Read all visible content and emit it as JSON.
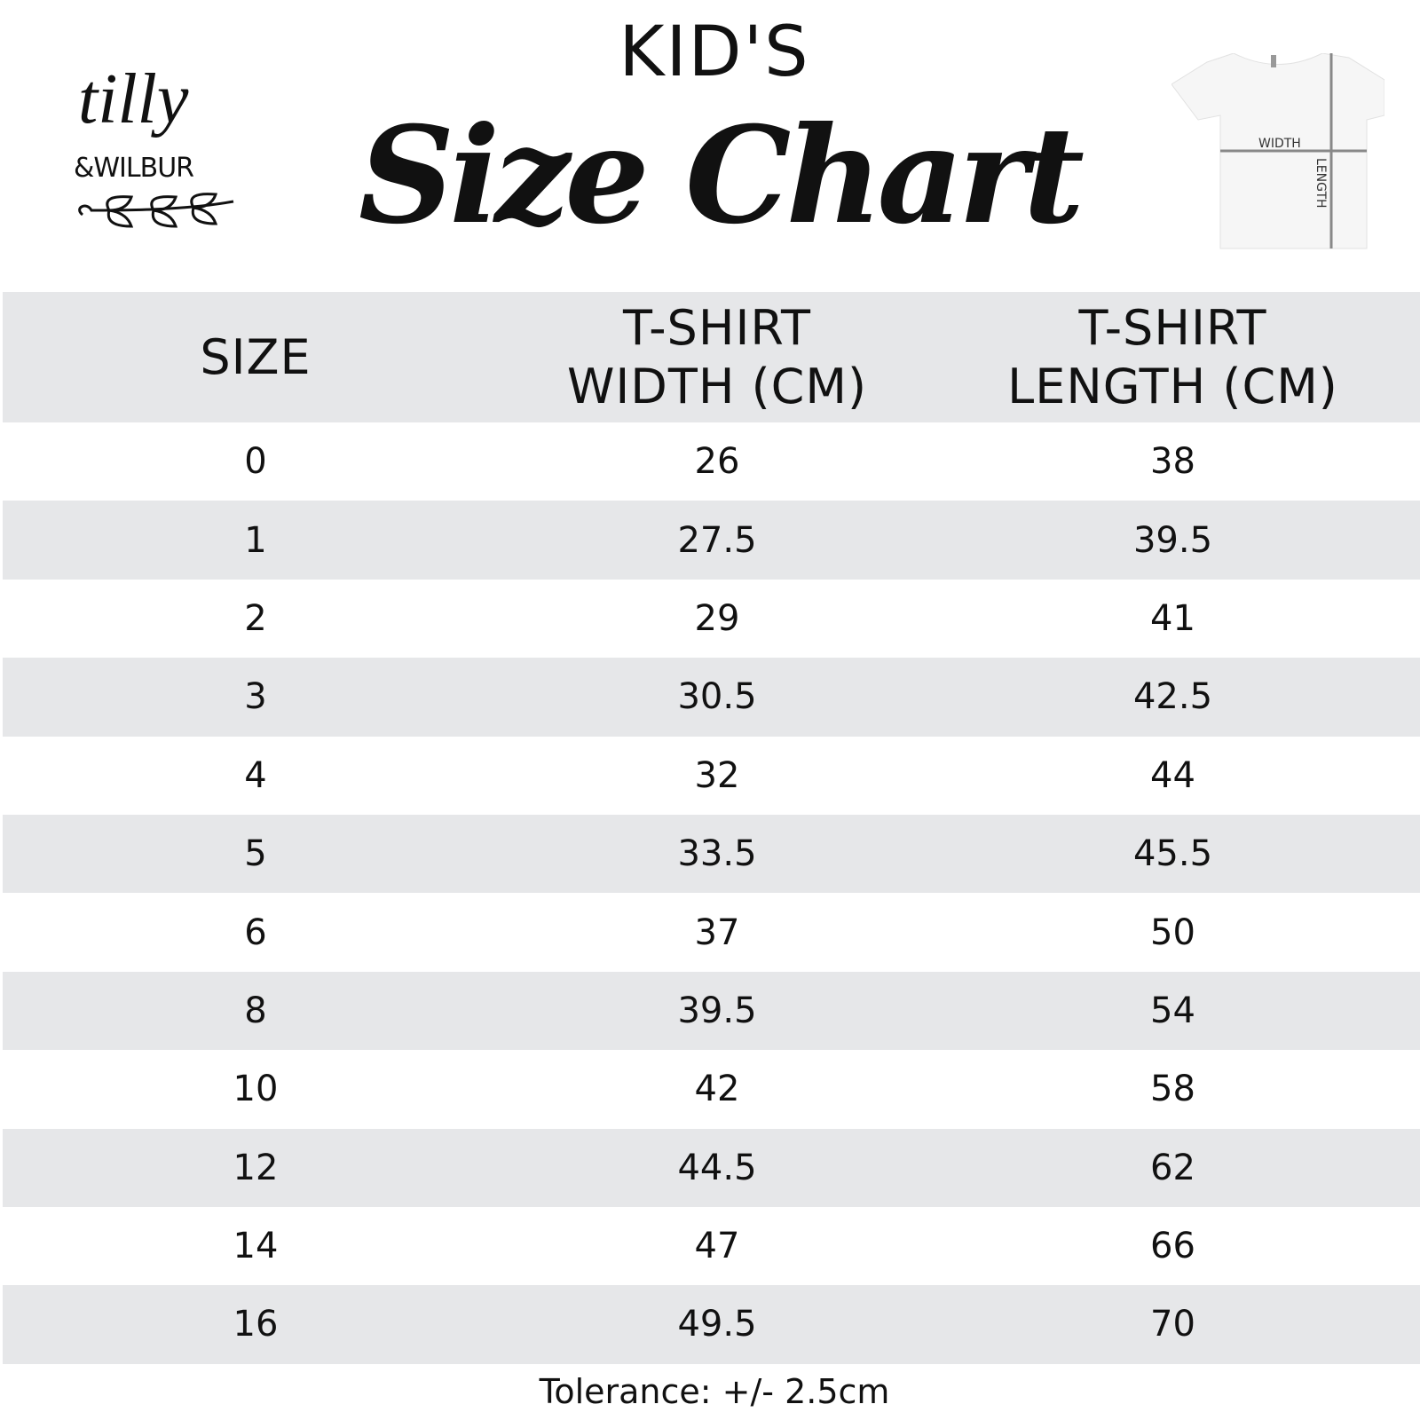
{
  "header": {
    "kids": "KID'S",
    "title": "Size Chart"
  },
  "logo": {
    "script": "tilly",
    "brand": "&WILBUR"
  },
  "diagram": {
    "width_label": "WIDTH",
    "length_label": "LENGTH"
  },
  "table": {
    "columns": [
      "SIZE",
      "T-SHIRT WIDTH (CM)",
      "T-SHIRT LENGTH (CM)"
    ],
    "rows": [
      [
        "0",
        "26",
        "38"
      ],
      [
        "1",
        "27.5",
        "39.5"
      ],
      [
        "2",
        "29",
        "41"
      ],
      [
        "3",
        "30.5",
        "42.5"
      ],
      [
        "4",
        "32",
        "44"
      ],
      [
        "5",
        "33.5",
        "45.5"
      ],
      [
        "6",
        "37",
        "50"
      ],
      [
        "8",
        "39.5",
        "54"
      ],
      [
        "10",
        "42",
        "58"
      ],
      [
        "12",
        "44.5",
        "62"
      ],
      [
        "14",
        "47",
        "66"
      ],
      [
        "16",
        "49.5",
        "70"
      ]
    ]
  },
  "footer": {
    "tolerance": "Tolerance: +/- 2.5cm"
  },
  "colors": {
    "row_shade": "#e6e7e9",
    "text": "#111111"
  }
}
